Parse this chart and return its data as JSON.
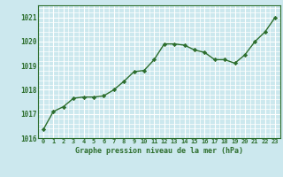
{
  "x": [
    0,
    1,
    2,
    3,
    4,
    5,
    6,
    7,
    8,
    9,
    10,
    11,
    12,
    13,
    14,
    15,
    16,
    17,
    18,
    19,
    20,
    21,
    22,
    23
  ],
  "y": [
    1016.35,
    1017.1,
    1017.3,
    1017.65,
    1017.7,
    1017.7,
    1017.75,
    1018.0,
    1018.35,
    1018.75,
    1018.8,
    1019.25,
    1019.9,
    1019.9,
    1019.85,
    1019.65,
    1019.55,
    1019.25,
    1019.25,
    1019.1,
    1019.45,
    1020.0,
    1020.4,
    1021.0
  ],
  "line_color": "#2d6e2d",
  "marker": "D",
  "marker_size": 2.2,
  "bg_color": "#cce8ee",
  "grid_color": "#ffffff",
  "xlabel": "Graphe pression niveau de la mer (hPa)",
  "xlabel_color": "#2d6e2d",
  "tick_color": "#2d6e2d",
  "ylim": [
    1016,
    1021.5
  ],
  "yticks": [
    1016,
    1017,
    1018,
    1019,
    1020,
    1021
  ],
  "xticks": [
    0,
    1,
    2,
    3,
    4,
    5,
    6,
    7,
    8,
    9,
    10,
    11,
    12,
    13,
    14,
    15,
    16,
    17,
    18,
    19,
    20,
    21,
    22,
    23
  ],
  "linewidth": 1.0
}
